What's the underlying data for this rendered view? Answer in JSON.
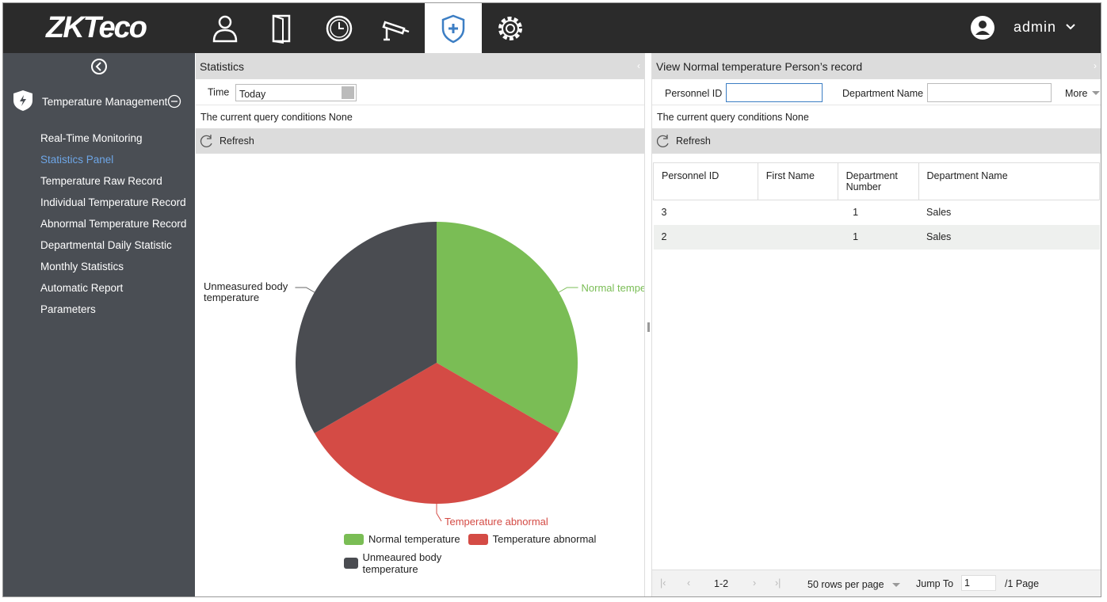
{
  "header": {
    "logo": "ZKTeco",
    "user": "admin"
  },
  "sidebar": {
    "module": "Temperature Management",
    "active": 1,
    "items": [
      "Real-Time Monitoring",
      "Statistics Panel",
      "Temperature Raw Record",
      "Individual Temperature Record",
      "Abnormal Temperature Record",
      "Departmental Daily Statistic",
      "Monthly Statistics",
      "Automatic Report",
      "Parameters"
    ]
  },
  "statistics": {
    "title": "Statistics",
    "time_label": "Time",
    "time_value": "Today",
    "query": "The current query conditions None",
    "refresh": "Refresh",
    "chart_data": {
      "type": "pie",
      "categories": [
        "Normal temperature",
        "Temperature abnormal",
        "Unmeaured body temperature"
      ],
      "slice_labels": [
        "Normal temperature",
        "Temperature abnormal",
        "Unmeasured body temperature"
      ],
      "values": [
        1,
        1,
        1
      ],
      "colors": [
        "#7abd55",
        "#d44b45",
        "#4a4c51"
      ]
    }
  },
  "record": {
    "title": "View Normal temperature Person’s record",
    "filters": [
      "Personnel ID",
      "Department Name"
    ],
    "more": "More",
    "query": "The current query conditions None",
    "refresh": "Refresh",
    "table": {
      "columns": [
        "Personnel ID",
        "First Name",
        "Department Number",
        "Department Name"
      ],
      "rows": [
        [
          "3",
          null,
          "1",
          "Sales"
        ],
        [
          "2",
          null,
          "1",
          "Sales"
        ]
      ]
    },
    "pager": {
      "range": "1-2",
      "per_page": "50 rows per page",
      "jump": "Jump To",
      "page_input": "1",
      "pages": "/1 Page"
    }
  }
}
